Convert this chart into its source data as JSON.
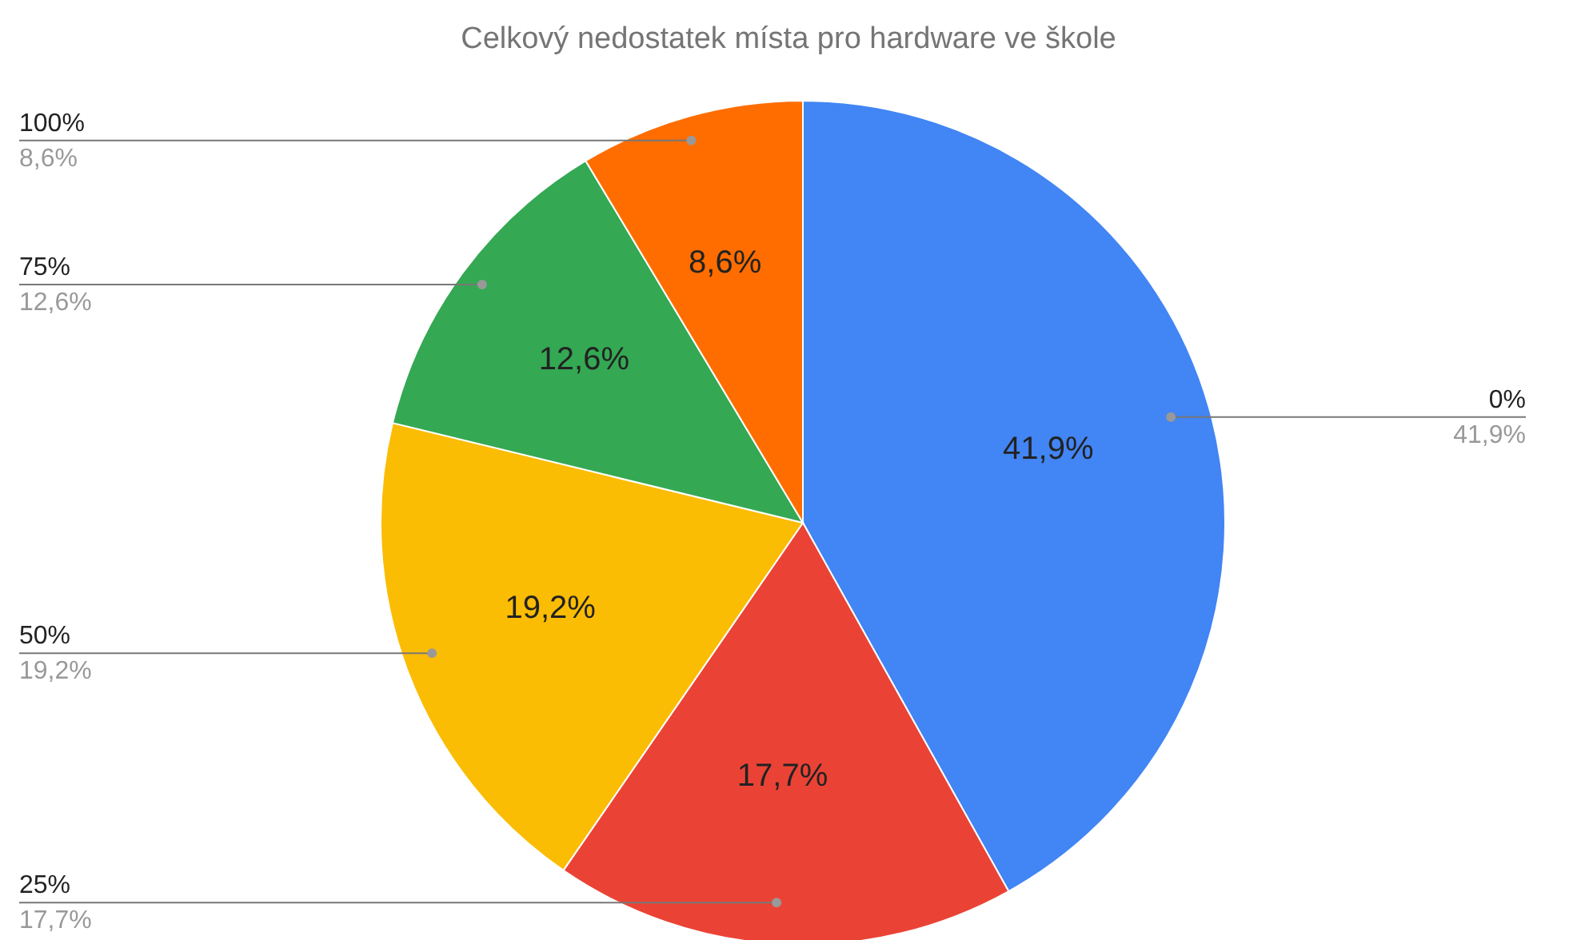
{
  "chart_data": {
    "type": "pie",
    "title": "Celkový nedostatek místa pro hardware ve škole",
    "categories": [
      "0%",
      "25%",
      "50%",
      "75%",
      "100%"
    ],
    "values": [
      41.9,
      17.7,
      19.2,
      12.6,
      8.6
    ],
    "colors": [
      "#4285f4",
      "#ea4335",
      "#fbbc04",
      "#34a853",
      "#ff6d01"
    ],
    "value_labels": [
      "41,9%",
      "17,7%",
      "19,2%",
      "12,6%",
      "8,6%"
    ]
  }
}
